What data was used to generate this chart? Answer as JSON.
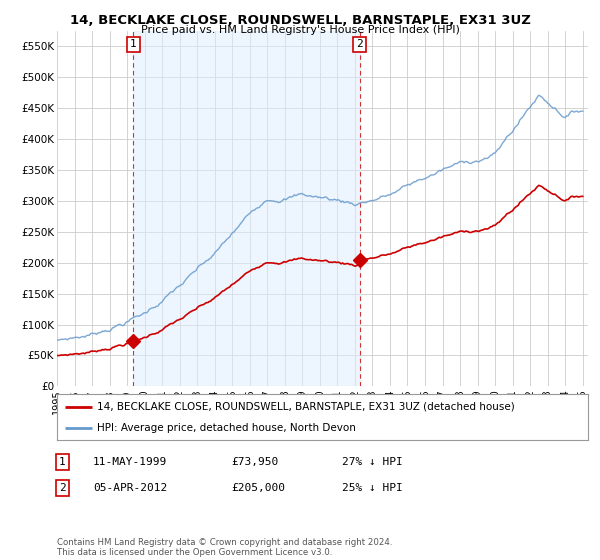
{
  "title": "14, BECKLAKE CLOSE, ROUNDSWELL, BARNSTAPLE, EX31 3UZ",
  "subtitle": "Price paid vs. HM Land Registry's House Price Index (HPI)",
  "legend_line1": "14, BECKLAKE CLOSE, ROUNDSWELL, BARNSTAPLE, EX31 3UZ (detached house)",
  "legend_line2": "HPI: Average price, detached house, North Devon",
  "sale1_label": "1",
  "sale1_date": "11-MAY-1999",
  "sale1_price": "£73,950",
  "sale1_hpi": "27% ↓ HPI",
  "sale1_x": 1999.36,
  "sale1_y": 73950,
  "sale2_label": "2",
  "sale2_date": "05-APR-2012",
  "sale2_price": "£205,000",
  "sale2_hpi": "25% ↓ HPI",
  "sale2_x": 2012.27,
  "sale2_y": 205000,
  "note": "Contains HM Land Registry data © Crown copyright and database right 2024.\nThis data is licensed under the Open Government Licence v3.0.",
  "red_color": "#cc0000",
  "blue_color": "#6699cc",
  "blue_fill": "#ddeeff",
  "vline_color": "#cc0000",
  "background_color": "#ffffff",
  "grid_color": "#cccccc",
  "ylim": [
    0,
    575000
  ],
  "xlim_start": 1995.0,
  "xlim_end": 2025.3,
  "yticks": [
    0,
    50000,
    100000,
    150000,
    200000,
    250000,
    300000,
    350000,
    400000,
    450000,
    500000,
    550000
  ],
  "ytick_labels": [
    "£0",
    "£50K",
    "£100K",
    "£150K",
    "£200K",
    "£250K",
    "£300K",
    "£350K",
    "£400K",
    "£450K",
    "£500K",
    "£550K"
  ],
  "xticks": [
    1995,
    1996,
    1997,
    1998,
    1999,
    2000,
    2001,
    2002,
    2003,
    2004,
    2005,
    2006,
    2007,
    2008,
    2009,
    2010,
    2011,
    2012,
    2013,
    2014,
    2015,
    2016,
    2017,
    2018,
    2019,
    2020,
    2021,
    2022,
    2023,
    2024,
    2025
  ]
}
